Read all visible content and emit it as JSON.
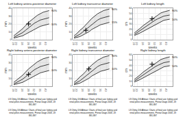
{
  "chart_data": [
    {
      "type": "line",
      "title": "Left kidney antero-posterior diameter",
      "xlabel": "weeks",
      "ylabel": "mm",
      "x": [
        18,
        20,
        22,
        24,
        26,
        28,
        30,
        32,
        34,
        36,
        38,
        40,
        42
      ],
      "xlim": [
        17,
        44
      ],
      "xticks": [
        18,
        20,
        24,
        28,
        32,
        36,
        40
      ],
      "ylim": [
        0,
        40
      ],
      "yticks": [
        0,
        10,
        20,
        30,
        40
      ],
      "grid": true,
      "series": [
        {
          "color": "#111111",
          "values": [
            2,
            3,
            4,
            5,
            7,
            9,
            11,
            13,
            15,
            17,
            18,
            19,
            20
          ]
        },
        {
          "color": "#111111",
          "values": [
            3,
            5,
            7,
            9,
            12,
            15,
            18,
            21,
            23,
            25,
            26,
            27,
            28
          ]
        },
        {
          "color": "#111111",
          "values": [
            5,
            8,
            11,
            14,
            18,
            22,
            25,
            28,
            31,
            33,
            35,
            36,
            37
          ]
        },
        {
          "type": "scatter",
          "marker": "plus",
          "color": "#000000",
          "x": [
            28
          ],
          "values": [
            20
          ]
        }
      ],
      "annotations": [
        {
          "text": "90%",
          "x": 42,
          "y": 37
        },
        {
          "text": "10%",
          "x": 42,
          "y": 20
        }
      ],
      "caption": "LS Chitty, DG Altman: Charts of fetal size: kidney and\nrenal pelvis measurements. Prenat Diagn 2003, 23:\n891-897"
    },
    {
      "type": "line",
      "title": "Left kidney transverse diameter",
      "xlabel": "weeks",
      "ylabel": "mm",
      "x": [
        18,
        20,
        22,
        24,
        26,
        28,
        30,
        32,
        34,
        36,
        38,
        40,
        42
      ],
      "xlim": [
        17,
        44
      ],
      "xticks": [
        18,
        20,
        24,
        28,
        32,
        36,
        40
      ],
      "ylim": [
        0,
        40
      ],
      "yticks": [
        0,
        10,
        20,
        30,
        40
      ],
      "grid": true,
      "series": [
        {
          "color": "#111111",
          "values": [
            2,
            3,
            4,
            6,
            8,
            10,
            13,
            15,
            17,
            19,
            20,
            21,
            22
          ]
        },
        {
          "color": "#111111",
          "values": [
            3,
            5,
            7,
            10,
            13,
            16,
            19,
            22,
            25,
            27,
            28,
            29,
            30
          ]
        },
        {
          "color": "#111111",
          "values": [
            5,
            8,
            12,
            15,
            19,
            23,
            27,
            30,
            33,
            35,
            37,
            38,
            39
          ]
        },
        {
          "type": "scatter",
          "marker": "plus",
          "color": "#000000",
          "x": [
            26
          ],
          "values": [
            12
          ]
        }
      ],
      "annotations": [
        {
          "text": "90%",
          "x": 42,
          "y": 39
        },
        {
          "text": "15%",
          "x": 42,
          "y": 22
        }
      ],
      "caption": "LS Chitty, DG Altman: Charts of fetal size: kidney and\nrenal pelvis measurements. Prenat Diagn 2003, 23:\n891-897"
    },
    {
      "type": "line",
      "title": "Left kidney length",
      "xlabel": "weeks",
      "ylabel": "cm",
      "x": [
        18,
        20,
        22,
        24,
        26,
        28,
        30,
        32,
        34,
        36,
        38,
        40,
        42
      ],
      "xlim": [
        17,
        44
      ],
      "xticks": [
        18,
        20,
        24,
        28,
        32,
        36,
        40
      ],
      "ylim": [
        0,
        60
      ],
      "yticks": [
        0,
        10,
        20,
        30,
        40,
        50,
        60
      ],
      "grid": true,
      "series": [
        {
          "color": "#111111",
          "values": [
            8,
            10,
            13,
            16,
            19,
            23,
            26,
            29,
            32,
            35,
            37,
            38,
            39
          ]
        },
        {
          "color": "#111111",
          "values": [
            10,
            14,
            17,
            21,
            25,
            29,
            33,
            37,
            40,
            43,
            45,
            46,
            47
          ]
        },
        {
          "color": "#111111",
          "values": [
            13,
            17,
            22,
            27,
            31,
            36,
            40,
            44,
            48,
            51,
            53,
            55,
            56
          ]
        },
        {
          "type": "scatter",
          "marker": "plus",
          "color": "#000000",
          "x": [
            30
          ],
          "values": [
            40
          ]
        }
      ],
      "annotations": [
        {
          "text": "90%",
          "x": 42,
          "y": 56
        },
        {
          "text": "10%",
          "x": 42,
          "y": 39
        }
      ],
      "caption": "LS Chitty, DG Altman: Charts of fetal size: kidney and\nrenal pelvis measurements. Prenat Diagn 2003, 23:\n891-897"
    },
    {
      "type": "line",
      "title": "Right kidney antero-posterior diameter",
      "xlabel": "weeks",
      "ylabel": "mm",
      "x": [
        18,
        20,
        22,
        24,
        26,
        28,
        30,
        32,
        34,
        36,
        38,
        40,
        42
      ],
      "xlim": [
        17,
        44
      ],
      "xticks": [
        18,
        20,
        24,
        28,
        32,
        36,
        40
      ],
      "ylim": [
        0,
        40
      ],
      "yticks": [
        0,
        10,
        20,
        30,
        40
      ],
      "grid": true,
      "series": [
        {
          "color": "#111111",
          "values": [
            2,
            3,
            4,
            5,
            7,
            9,
            11,
            13,
            15,
            17,
            18,
            19,
            20
          ]
        },
        {
          "color": "#111111",
          "values": [
            3,
            5,
            7,
            9,
            12,
            15,
            18,
            21,
            23,
            25,
            26,
            27,
            28
          ]
        },
        {
          "color": "#111111",
          "values": [
            5,
            8,
            11,
            14,
            18,
            22,
            25,
            28,
            31,
            33,
            35,
            36,
            37
          ]
        },
        {
          "type": "scatter",
          "marker": "plus",
          "color": "#000000",
          "x": [
            28
          ],
          "values": [
            15
          ]
        }
      ],
      "annotations": [
        {
          "text": "90%",
          "x": 42,
          "y": 37
        },
        {
          "text": "10%",
          "x": 42,
          "y": 20
        }
      ],
      "caption": "LS Chitty, DG Altman: Charts of fetal size: kidney and\nrenal pelvis measurements. Prenat Diagn 2003, 23:\n891-897"
    },
    {
      "type": "line",
      "title": "Right kidney transverse diameter",
      "xlabel": "weeks",
      "ylabel": "mm",
      "x": [
        18,
        20,
        22,
        24,
        26,
        28,
        30,
        32,
        34,
        36,
        38,
        40,
        42
      ],
      "xlim": [
        17,
        44
      ],
      "xticks": [
        18,
        20,
        24,
        28,
        32,
        36,
        40
      ],
      "ylim": [
        0,
        40
      ],
      "yticks": [
        0,
        10,
        20,
        30,
        40
      ],
      "grid": true,
      "series": [
        {
          "color": "#111111",
          "values": [
            2,
            3,
            4,
            6,
            8,
            10,
            13,
            15,
            17,
            19,
            20,
            21,
            22
          ]
        },
        {
          "color": "#111111",
          "values": [
            3,
            5,
            7,
            10,
            13,
            16,
            19,
            22,
            25,
            27,
            28,
            29,
            30
          ]
        },
        {
          "color": "#111111",
          "values": [
            5,
            8,
            12,
            15,
            19,
            23,
            27,
            30,
            33,
            35,
            37,
            38,
            39
          ]
        },
        {
          "type": "scatter",
          "marker": "plus",
          "color": "#000000",
          "x": [
            28
          ],
          "values": [
            22
          ]
        }
      ],
      "annotations": [
        {
          "text": "90%",
          "x": 42,
          "y": 39
        },
        {
          "text": "10%",
          "x": 42,
          "y": 22
        }
      ],
      "caption": "LS Chitty, DG Altman: Charts of fetal size: kidney and\nrenal pelvis measurements. Prenat Diagn 2003, 23:\n891-897"
    },
    {
      "type": "line",
      "title": "Right kidney length",
      "xlabel": "weeks",
      "ylabel": "cm",
      "x": [
        18,
        20,
        22,
        24,
        26,
        28,
        30,
        32,
        34,
        36,
        38,
        40,
        42
      ],
      "xlim": [
        17,
        44
      ],
      "xticks": [
        18,
        20,
        24,
        28,
        32,
        36,
        40
      ],
      "ylim": [
        0,
        60
      ],
      "yticks": [
        0,
        10,
        20,
        30,
        40,
        50,
        60
      ],
      "grid": true,
      "series": [
        {
          "color": "#111111",
          "values": [
            8,
            10,
            13,
            16,
            19,
            23,
            26,
            29,
            32,
            35,
            37,
            38,
            39
          ]
        },
        {
          "color": "#111111",
          "values": [
            10,
            14,
            17,
            21,
            25,
            29,
            33,
            37,
            40,
            43,
            45,
            46,
            47
          ]
        },
        {
          "color": "#111111",
          "values": [
            13,
            17,
            22,
            27,
            31,
            36,
            40,
            44,
            48,
            51,
            53,
            55,
            56
          ]
        },
        {
          "type": "scatter",
          "marker": "plus",
          "color": "#000000",
          "x": [
            30
          ],
          "values": [
            42
          ]
        }
      ],
      "annotations": [
        {
          "text": "90%",
          "x": 42,
          "y": 56
        },
        {
          "text": "10%",
          "x": 42,
          "y": 39
        }
      ],
      "caption": "LS Chitty, DG Altman: Charts of fetal size: kidney and\nrenal pelvis measurements. Prenat Diagn 2003, 23:\n891-897"
    }
  ]
}
